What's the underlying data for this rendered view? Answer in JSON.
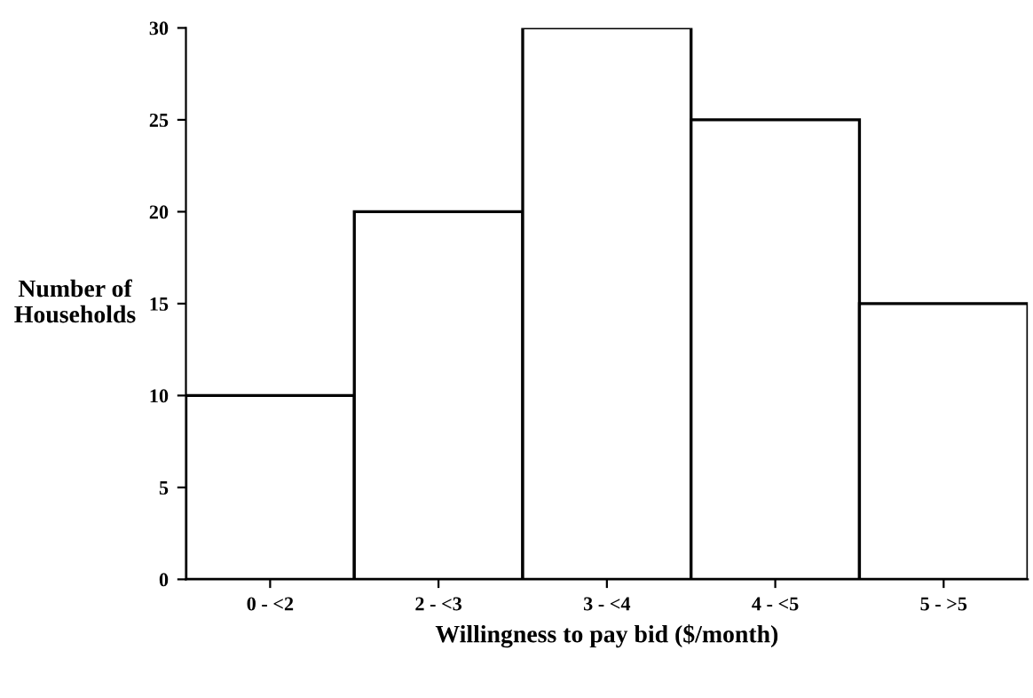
{
  "chart_data": {
    "type": "bar",
    "xlabel": "Willingness to pay bid ($/month)",
    "ylabel": "Number of\nHouseholds",
    "categories": [
      "0 - <2",
      "2 - <3",
      "3 - <4",
      "4 - <5",
      "5 - >5"
    ],
    "values": [
      10,
      20,
      30,
      25,
      15
    ],
    "color": "#ffffff",
    "ylim": [
      0,
      30
    ],
    "yticks": [
      0,
      5,
      10,
      15,
      20,
      25,
      30
    ],
    "grid": false,
    "legend": false
  }
}
